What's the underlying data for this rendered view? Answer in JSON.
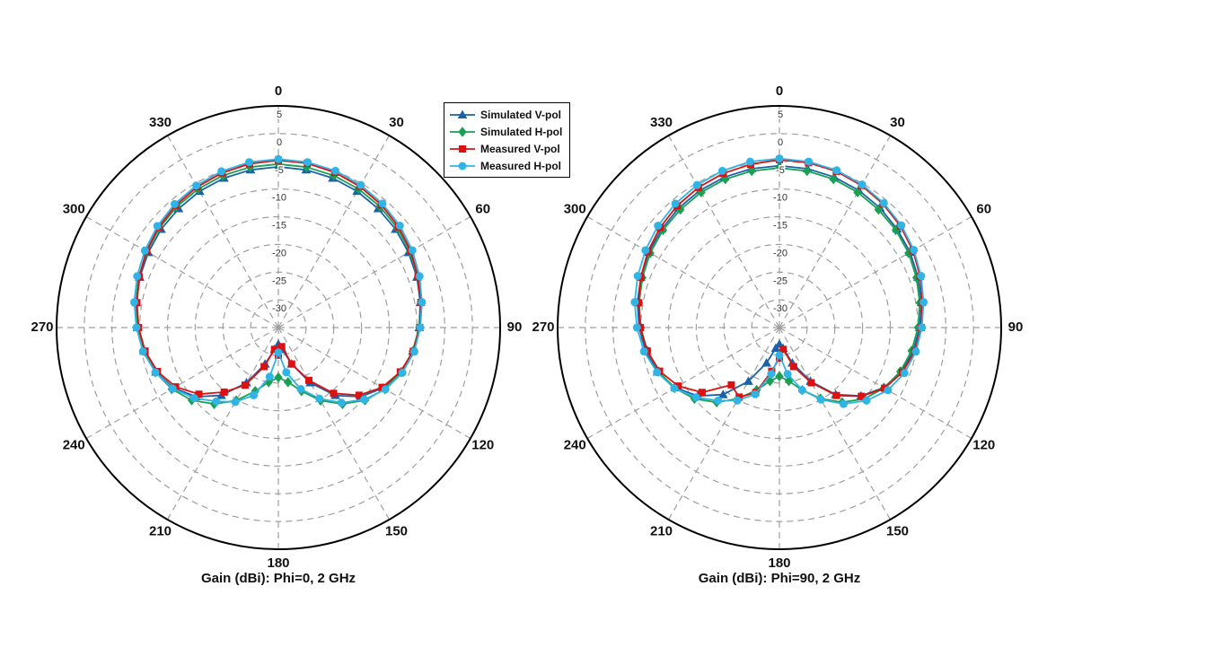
{
  "page": {
    "background": "#ffffff"
  },
  "legend": {
    "entries": [
      {
        "label": "Simulated V-pol",
        "color": "#1a63a8",
        "marker": "triangle"
      },
      {
        "label": "Simulated H-pol",
        "color": "#1aa053",
        "marker": "diamond"
      },
      {
        "label": "Measured V-pol",
        "color": "#dd1111",
        "marker": "square"
      },
      {
        "label": "Measured H-pol",
        "color": "#30b4e6",
        "marker": "circle"
      }
    ]
  },
  "chart_data": [
    {
      "type": "line",
      "subtype": "polar",
      "title": "Gain (dBi): Phi=0, 2 GHz",
      "angle_labels": [
        "0",
        "30",
        "60",
        "90",
        "120",
        "150",
        "180",
        "210",
        "240",
        "270",
        "300",
        "330"
      ],
      "radial_ticks": [
        5,
        0,
        -5,
        -10,
        -15,
        -20,
        -25,
        -30
      ],
      "r_min": -35,
      "r_max": 5,
      "theta_step_deg": 10,
      "grid": true,
      "legend_position": "top-center",
      "series": [
        {
          "name": "Simulated V-pol",
          "color": "#1a63a8",
          "marker": "triangle",
          "values": [
            -6.0,
            -6.1,
            -6.3,
            -6.6,
            -7.0,
            -7.4,
            -7.9,
            -8.4,
            -9.0,
            -9.6,
            -10.4,
            -11.5,
            -13.2,
            -15.6,
            -19.0,
            -23.5,
            -28.0,
            -31.0,
            -32.0,
            -31.0,
            -28.0,
            -23.5,
            -19.0,
            -15.6,
            -13.2,
            -11.5,
            -10.4,
            -9.6,
            -9.0,
            -8.4,
            -7.9,
            -7.4,
            -7.0,
            -6.6,
            -6.3,
            -6.1
          ]
        },
        {
          "name": "Simulated H-pol",
          "color": "#1aa053",
          "marker": "diamond",
          "values": [
            -5.5,
            -5.6,
            -5.8,
            -6.1,
            -6.5,
            -7.0,
            -7.6,
            -8.2,
            -8.9,
            -9.6,
            -10.4,
            -11.4,
            -12.8,
            -14.6,
            -17.0,
            -19.8,
            -22.8,
            -25.0,
            -26.0,
            -25.0,
            -22.8,
            -19.8,
            -17.0,
            -14.6,
            -12.8,
            -11.4,
            -10.4,
            -9.6,
            -8.9,
            -8.2,
            -7.6,
            -7.0,
            -6.5,
            -6.1,
            -5.8,
            -5.6
          ]
        },
        {
          "name": "Measured V-pol",
          "color": "#dd1111",
          "marker": "square",
          "values": [
            -4.8,
            -4.9,
            -5.2,
            -5.6,
            -6.1,
            -6.7,
            -7.4,
            -8.2,
            -8.9,
            -9.5,
            -10.3,
            -11.6,
            -13.4,
            -16.0,
            -19.5,
            -24.0,
            -28.0,
            -31.5,
            -30.0,
            -31.0,
            -27.5,
            -23.0,
            -19.8,
            -16.3,
            -13.6,
            -11.8,
            -10.6,
            -9.8,
            -9.1,
            -8.3,
            -7.5,
            -6.8,
            -6.2,
            -5.7,
            -5.3,
            -5.0
          ]
        },
        {
          "name": "Measured H-pol",
          "color": "#30b4e6",
          "marker": "circle",
          "values": [
            -4.6,
            -4.7,
            -4.9,
            -5.3,
            -5.8,
            -6.4,
            -7.1,
            -7.9,
            -8.7,
            -9.4,
            -10.1,
            -11.2,
            -12.7,
            -14.8,
            -17.3,
            -20.2,
            -23.2,
            -26.8,
            -30.5,
            -26.0,
            -22.0,
            -19.5,
            -17.6,
            -15.2,
            -13.0,
            -11.4,
            -10.2,
            -9.4,
            -8.6,
            -7.9,
            -7.2,
            -6.5,
            -5.9,
            -5.4,
            -5.0,
            -4.7
          ]
        }
      ]
    },
    {
      "type": "line",
      "subtype": "polar",
      "title": "Gain (dBi): Phi=90, 2 GHz",
      "angle_labels": [
        "0",
        "30",
        "60",
        "90",
        "120",
        "150",
        "180",
        "210",
        "240",
        "270",
        "300",
        "330"
      ],
      "radial_ticks": [
        5,
        0,
        -5,
        -10,
        -15,
        -20,
        -25,
        -30
      ],
      "r_min": -35,
      "r_max": 5,
      "theta_step_deg": 10,
      "grid": true,
      "legend_position": "none",
      "series": [
        {
          "name": "Simulated V-pol",
          "color": "#1a63a8",
          "marker": "triangle",
          "values": [
            -5.8,
            -5.9,
            -6.1,
            -6.4,
            -6.8,
            -7.3,
            -7.8,
            -8.4,
            -9.0,
            -9.7,
            -10.5,
            -11.6,
            -13.3,
            -15.8,
            -19.2,
            -23.8,
            -28.2,
            -31.2,
            -32.0,
            -31.2,
            -28.2,
            -23.8,
            -19.2,
            -15.8,
            -13.3,
            -11.6,
            -10.5,
            -9.7,
            -9.0,
            -8.4,
            -7.8,
            -7.3,
            -6.8,
            -6.4,
            -6.1,
            -5.9
          ]
        },
        {
          "name": "Simulated H-pol",
          "color": "#1aa053",
          "marker": "diamond",
          "values": [
            -6.2,
            -6.3,
            -6.5,
            -6.8,
            -7.2,
            -7.6,
            -8.1,
            -8.7,
            -9.3,
            -10.0,
            -10.8,
            -11.8,
            -13.2,
            -15.0,
            -17.4,
            -20.2,
            -23.0,
            -25.2,
            -26.2,
            -25.2,
            -23.0,
            -20.2,
            -17.4,
            -15.0,
            -13.2,
            -11.8,
            -10.8,
            -10.0,
            -9.3,
            -8.7,
            -8.1,
            -7.6,
            -7.2,
            -6.8,
            -6.5,
            -6.3
          ]
        },
        {
          "name": "Measured V-pol",
          "color": "#dd1111",
          "marker": "square",
          "values": [
            -4.7,
            -4.8,
            -5.0,
            -5.4,
            -5.9,
            -6.5,
            -7.2,
            -8.0,
            -8.8,
            -9.4,
            -10.2,
            -11.4,
            -13.1,
            -15.7,
            -19.0,
            -23.5,
            -27.5,
            -31.0,
            -29.5,
            -27.0,
            -22.5,
            -20.5,
            -21.5,
            -16.8,
            -13.9,
            -12.0,
            -10.8,
            -9.9,
            -9.2,
            -8.4,
            -7.6,
            -6.9,
            -6.3,
            -5.8,
            -5.4,
            -5.1
          ]
        },
        {
          "name": "Measured H-pol",
          "color": "#30b4e6",
          "marker": "circle",
          "values": [
            -4.5,
            -4.6,
            -4.8,
            -5.2,
            -5.7,
            -6.3,
            -7.0,
            -7.8,
            -8.6,
            -9.3,
            -10.0,
            -11.0,
            -12.4,
            -14.5,
            -17.0,
            -20.0,
            -23.0,
            -26.5,
            -30.0,
            -26.5,
            -22.2,
            -19.8,
            -17.8,
            -15.4,
            -13.1,
            -11.5,
            -10.2,
            -9.3,
            -8.5,
            -7.8,
            -7.1,
            -6.4,
            -5.8,
            -5.3,
            -4.9,
            -4.6
          ]
        }
      ]
    }
  ]
}
